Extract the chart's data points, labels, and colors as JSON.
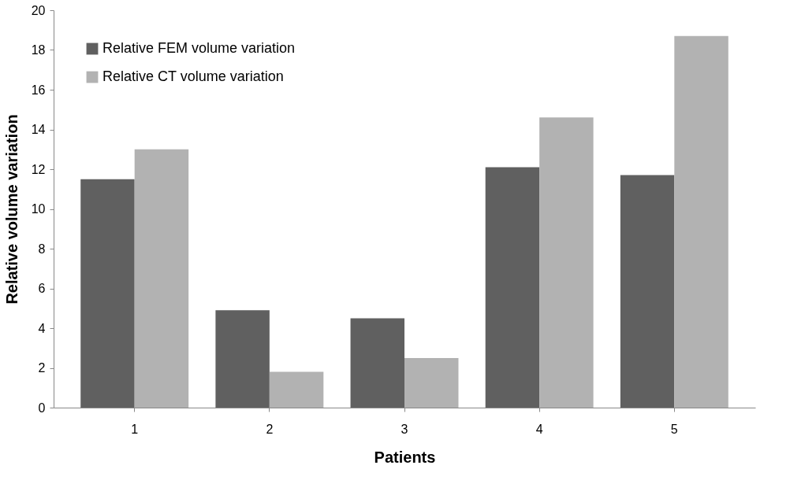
{
  "chart_data": {
    "type": "bar",
    "xlabel": "Patients",
    "ylabel": "Relative  volume variation",
    "categories": [
      "1",
      "2",
      "3",
      "4",
      "5"
    ],
    "series": [
      {
        "name": "Relative FEM volume variation",
        "color": "#606060",
        "values": [
          11.5,
          4.9,
          4.5,
          12.1,
          11.7
        ]
      },
      {
        "name": "Relative CT volume variation",
        "color": "#b2b2b2",
        "values": [
          13.0,
          1.8,
          2.5,
          14.6,
          18.7
        ]
      }
    ],
    "ylim": [
      0,
      20
    ],
    "yticks": [
      0,
      2,
      4,
      6,
      8,
      10,
      12,
      14,
      16,
      18,
      20
    ],
    "grid": false,
    "legend": "top left"
  }
}
